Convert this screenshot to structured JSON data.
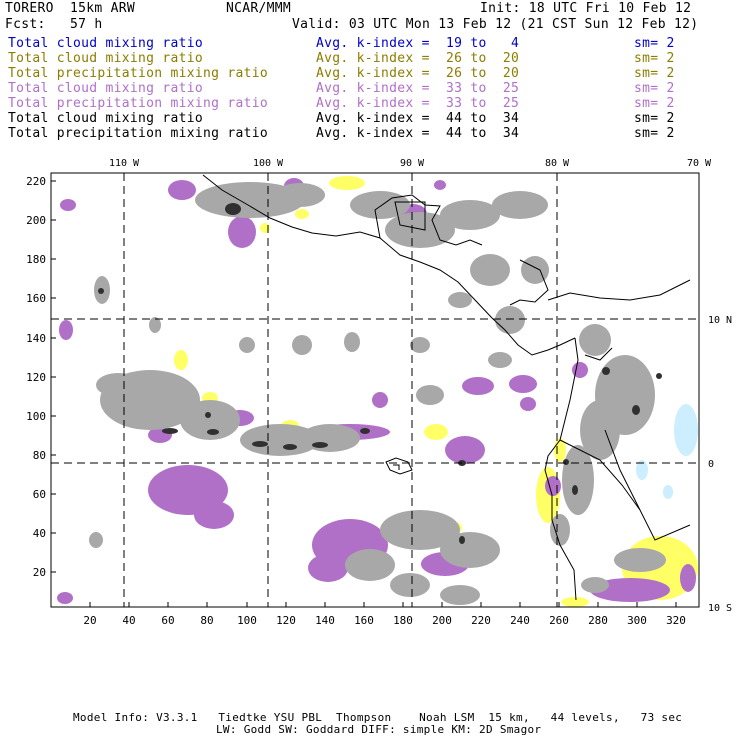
{
  "header": {
    "model": "TORERO  15km ARW",
    "org": "NCAR/MMM",
    "init": "Init: 18 UTC Fri 10 Feb 12",
    "fcst": "Fcst:   57 h",
    "valid": "Valid: 03 UTC Mon 13 Feb 12 (21 CST Sun 12 Feb 12)"
  },
  "legend": [
    {
      "field": "Total cloud mixing ratio",
      "kindex": "Avg. k-index =  19 to   4",
      "sm": "sm= 2",
      "color": "#0000cc"
    },
    {
      "field": "Total cloud mixing ratio",
      "kindex": "Avg. k-index =  26 to  20",
      "sm": "sm= 2",
      "color": "#8b7d00"
    },
    {
      "field": "Total precipitation mixing ratio",
      "kindex": "Avg. k-index =  26 to  20",
      "sm": "sm= 2",
      "color": "#8b7d00"
    },
    {
      "field": "Total cloud mixing ratio",
      "kindex": "Avg. k-index =  33 to  25",
      "sm": "sm= 2",
      "color": "#b070c8"
    },
    {
      "field": "Total precipitation mixing ratio",
      "kindex": "Avg. k-index =  33 to  25",
      "sm": "sm= 2",
      "color": "#b070c8"
    },
    {
      "field": "Total cloud mixing ratio",
      "kindex": "Avg. k-index =  44 to  34",
      "sm": "sm= 2",
      "color": "#000000"
    },
    {
      "field": "Total precipitation mixing ratio",
      "kindex": "Avg. k-index =  44 to  34",
      "sm": "sm= 2",
      "color": "#000000"
    }
  ],
  "map": {
    "lon_labels": [
      "110 W",
      "100 W",
      "90 W",
      "80 W",
      "70 W"
    ],
    "lat_labels": [
      "10 N",
      "0",
      "10 S"
    ],
    "x_ticks": [
      "20",
      "40",
      "60",
      "80",
      "100",
      "120",
      "140",
      "160",
      "180",
      "200",
      "220",
      "240",
      "260",
      "280",
      "300",
      "320"
    ],
    "y_ticks": [
      "220",
      "200",
      "180",
      "160",
      "140",
      "120",
      "100",
      "80",
      "60",
      "40",
      "20"
    ],
    "colors": {
      "gray": "#a8a8a8",
      "purple": "#b070c8",
      "yellow": "#ffff66",
      "dark": "#303030",
      "lightblue": "#cceeff"
    }
  },
  "footer": {
    "line1": "Model Info: V3.3.1   Tiedtke YSU PBL  Thompson    Noah LSM  15 km,   44 levels,   73 sec",
    "line2": "LW: Godd SW: Goddard DIFF: simple KM: 2D Smagor"
  }
}
